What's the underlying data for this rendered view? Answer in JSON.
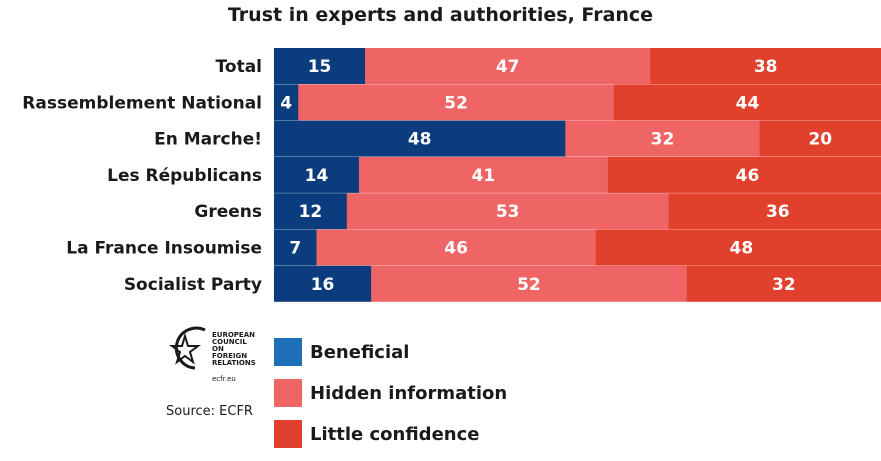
{
  "chart_data": {
    "type": "bar",
    "orientation": "horizontal",
    "stacked": true,
    "title": "Trust in experts and authorities, France",
    "categories": [
      "Total",
      "Rassemblement National",
      "En Marche!",
      "Les Républicans",
      "Greens",
      "La France Insoumise",
      "Socialist Party"
    ],
    "series": [
      {
        "name": "Beneficial",
        "color": "#0b3d7e",
        "values": [
          15,
          4,
          48,
          14,
          12,
          7,
          16
        ]
      },
      {
        "name": "Hidden information",
        "color": "#ef6565",
        "values": [
          47,
          52,
          32,
          41,
          53,
          46,
          52
        ]
      },
      {
        "name": "Little confidence",
        "color": "#e1402d",
        "values": [
          38,
          44,
          20,
          46,
          36,
          48,
          32
        ]
      }
    ],
    "xlim": [
      0,
      100
    ],
    "legend_position": "bottom",
    "legend_colors": [
      "#1f6eb8",
      "#ef6565",
      "#e1402d"
    ],
    "grid": false
  },
  "logo": {
    "icon": "star-circle-icon",
    "lines": [
      "EUROPEAN",
      "COUNCIL",
      "ON FOREIGN",
      "RELATIONS"
    ],
    "sub": "ecfr.eu"
  },
  "source": "Source: ECFR"
}
